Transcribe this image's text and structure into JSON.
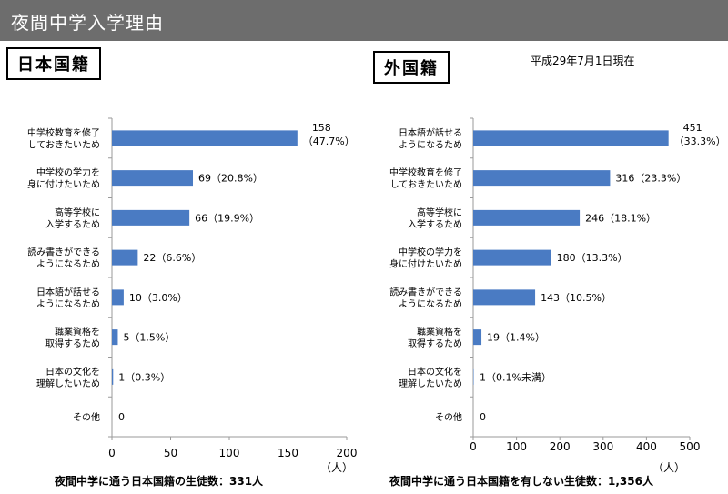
{
  "header": {
    "title": "夜間中学入学理由"
  },
  "date_note": "平成29年7月1日現在",
  "colors": {
    "header_bg": "#6d6d6d",
    "bar": "#4a7bc3",
    "axis": "#9a9a9a"
  },
  "charts": {
    "left": {
      "box_label": "日本国籍",
      "footer": "夜間中学に通う日本国籍の生徒数：331人"
    },
    "right": {
      "box_label": "外国籍",
      "footer": "夜間中学に通う日本国籍を有しない生徒数：1,356人"
    }
  },
  "chart_data": [
    {
      "type": "bar",
      "orientation": "horizontal",
      "title": "日本国籍",
      "categories": [
        [
          "中学校教育を修了",
          "しておきたいため"
        ],
        [
          "中学校の学力を",
          "身に付けたいため"
        ],
        [
          "高等学校に",
          "入学するため"
        ],
        [
          "読み書きができる",
          "ようになるため"
        ],
        [
          "日本語が話せる",
          "ようになるため"
        ],
        [
          "職業資格を",
          "取得するため"
        ],
        [
          "日本の文化を",
          "理解したいため"
        ],
        [
          "その他"
        ]
      ],
      "values": [
        158,
        69,
        66,
        22,
        10,
        5,
        1,
        0
      ],
      "data_labels": [
        "158",
        "69（20.8%）",
        "66（19.9%）",
        "22（6.6%）",
        "10（3.0%）",
        "5（1.5%）",
        "1（0.3%）",
        "0"
      ],
      "data_labels_line2": [
        "（47.7%）",
        "",
        "",
        "",
        "",
        "",
        "",
        ""
      ],
      "xlim": [
        0,
        200
      ],
      "xticks": [
        "0",
        "50",
        "100",
        "150",
        "200"
      ],
      "unit": "（人）"
    },
    {
      "type": "bar",
      "orientation": "horizontal",
      "title": "外国籍",
      "categories": [
        [
          "日本語が話せる",
          "ようになるため"
        ],
        [
          "中学校教育を修了",
          "しておきたいため"
        ],
        [
          "高等学校に",
          "入学するため"
        ],
        [
          "中学校の学力を",
          "身に付けたいため"
        ],
        [
          "読み書きができる",
          "ようになるため"
        ],
        [
          "職業資格を",
          "取得するため"
        ],
        [
          "日本の文化を",
          "理解したいため"
        ],
        [
          "その他"
        ]
      ],
      "values": [
        451,
        316,
        246,
        180,
        143,
        19,
        1,
        0
      ],
      "data_labels": [
        "451",
        "316（23.3%）",
        "246（18.1%）",
        "180（13.3%）",
        "143（10.5%）",
        "19（1.4%）",
        "1（0.1%未満）",
        "0"
      ],
      "data_labels_line2": [
        "（33.3%）",
        "",
        "",
        "",
        "",
        "",
        "",
        ""
      ],
      "xlim": [
        0,
        500
      ],
      "xticks": [
        "0",
        "100",
        "200",
        "300",
        "400",
        "500"
      ],
      "unit": "（人）"
    }
  ]
}
